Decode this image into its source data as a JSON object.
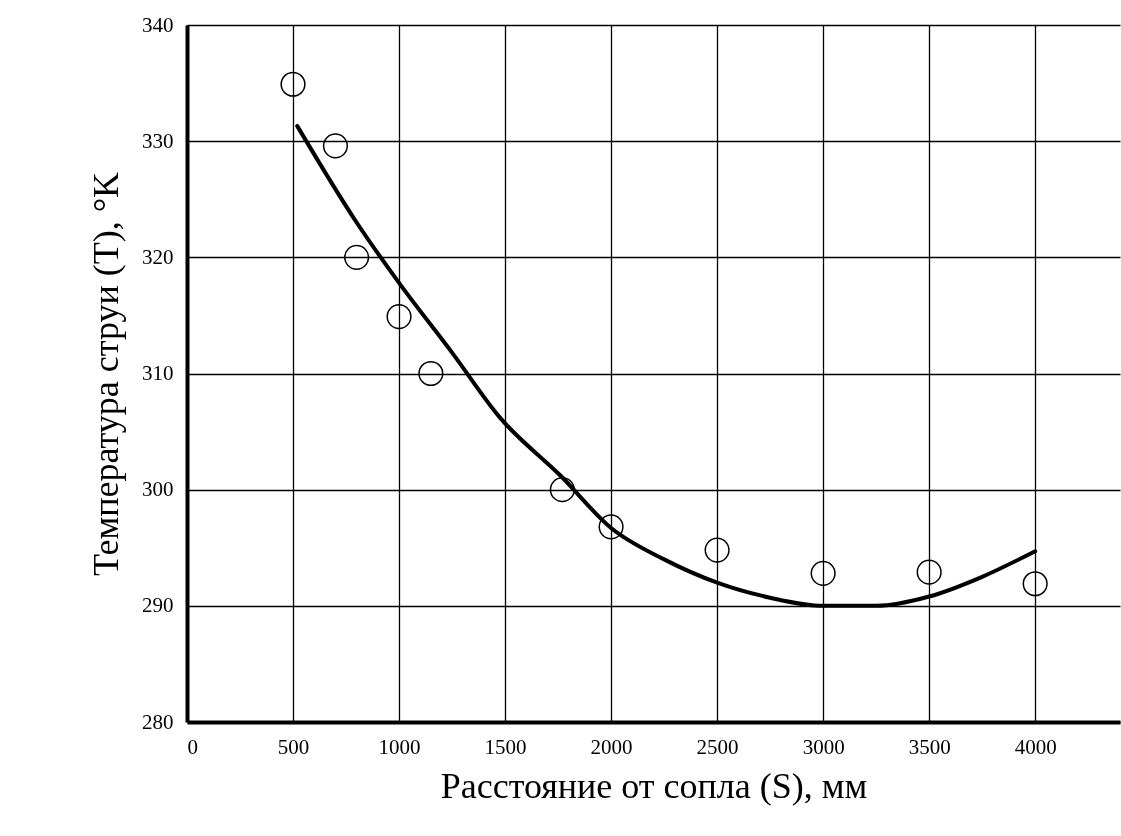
{
  "chart_data": {
    "type": "scatter",
    "xlabel": "Расстояние от сопла (S), мм",
    "ylabel": "Температура струи (T), °K",
    "xlim": [
      0,
      4400
    ],
    "ylim": [
      280,
      340
    ],
    "xticks": [
      0,
      500,
      1000,
      1500,
      2000,
      2500,
      3000,
      3500,
      4000
    ],
    "yticks": [
      280,
      290,
      300,
      310,
      320,
      330,
      340
    ],
    "grid": true,
    "series": [
      {
        "marker": "circle",
        "color": "#000000",
        "x": [
          500,
          700,
          800,
          1000,
          1150,
          1770,
          2000,
          2500,
          3000,
          3500,
          4000
        ],
        "values": [
          334.9,
          329.6,
          320,
          314.9,
          310,
          300,
          296.8,
          294.8,
          292.8,
          292.9,
          291.9
        ]
      },
      {
        "type": "line",
        "color": "#000000",
        "x": [
          520,
          800,
          1000,
          1250,
          1476,
          1762,
          2000,
          2250,
          2500,
          2750,
          3000,
          3250,
          3500,
          3750,
          4000
        ],
        "values": [
          331.3,
          323,
          317.8,
          311.8,
          306.2,
          301.2,
          296.7,
          294,
          292,
          290.7,
          290,
          290,
          290.8,
          292.5,
          294.7
        ]
      }
    ]
  }
}
